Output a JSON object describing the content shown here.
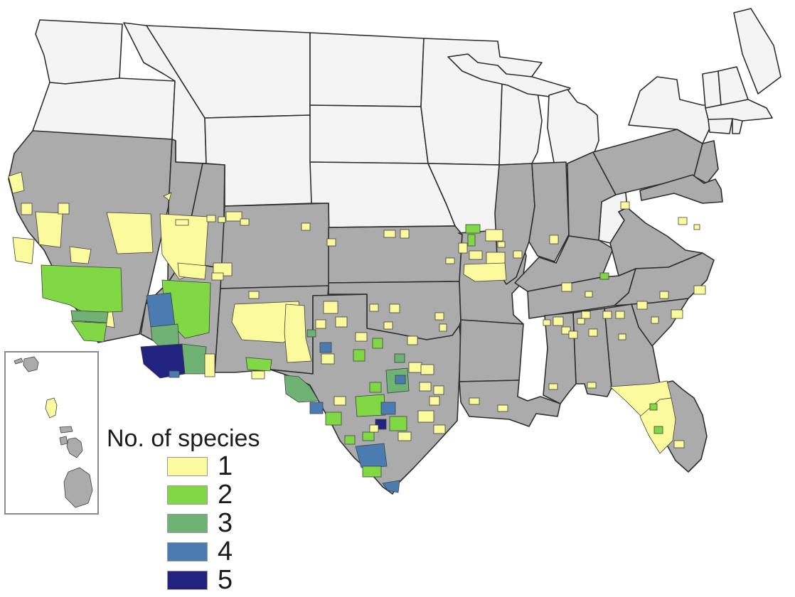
{
  "figure": {
    "type": "choropleth-map",
    "region": "United States (contiguous states with Hawaii inset)",
    "description": "County-level map of number of species; white states not surveyed, gray states surveyed with zero-count counties"
  },
  "legend": {
    "title": "No. of species",
    "entries": [
      {
        "label": "1",
        "color": "#FBFB9E"
      },
      {
        "label": "2",
        "color": "#80D944"
      },
      {
        "label": "3",
        "color": "#6EB274"
      },
      {
        "label": "4",
        "color": "#4A7CB2"
      },
      {
        "label": "5",
        "color": "#22227F"
      }
    ]
  },
  "map_data": {
    "palette": {
      "1": "#FBFB9E",
      "2": "#80D944",
      "3": "#6EB274",
      "4": "#4A7CB2",
      "5": "#22227F"
    },
    "no_data_fill": "#F4F4F4",
    "surveyed_fill": "#ABABAB",
    "state_border_color": "#2E2E2E",
    "county_border_color": "#3F3F3F",
    "inset_border_color": "#8A8A8A",
    "states_no_data": [
      "WA",
      "OR",
      "ID",
      "MT",
      "WY",
      "ND",
      "SD",
      "NE",
      "MN",
      "IA",
      "WI",
      "MIUP",
      "MI",
      "WV",
      "NY",
      "VT",
      "NH",
      "ME",
      "MA",
      "CT",
      "RI"
    ],
    "states_surveyed": [
      "CA",
      "NV",
      "UT",
      "AZ",
      "CO",
      "NM",
      "KS",
      "OK",
      "TX",
      "MO",
      "AR",
      "LA",
      "IL",
      "IN",
      "OH",
      "KY",
      "TN",
      "VA",
      "NC",
      "SC",
      "GA",
      "AL",
      "MS",
      "FL",
      "PA",
      "NJ",
      "MD"
    ],
    "patches": [
      {
        "n": 1,
        "p": "12,248 30,242 34,268 18,272"
      },
      {
        "n": 1,
        "r": [
          30,
          286,
          15,
          16
        ]
      },
      {
        "n": 1,
        "p": "50,298 88,300 85,348 55,344"
      },
      {
        "n": 1,
        "p": "18,334 48,337 45,371 22,367"
      },
      {
        "n": 1,
        "r": [
          82,
          286,
          15,
          15
        ]
      },
      {
        "n": 1,
        "p": "98,347 128,351 124,371 100,369"
      },
      {
        "n": 1,
        "p": "136,427 157,431 161,461 141,457"
      },
      {
        "n": 1,
        "p": "150,299 212,301 215,355 165,357"
      },
      {
        "n": 2,
        "p": "58,373 170,377 172,438 120,441 98,429 60,419"
      },
      {
        "n": 3,
        "p": "100,437 152,439 150,454 102,451"
      },
      {
        "n": 2,
        "p": "100,452 150,455 146,481 118,479"
      },
      {
        "n": 1,
        "p": "225,301 293,305 288,380 252,393 228,358"
      },
      {
        "n": 1,
        "p": "230,276 241,271 238,282"
      },
      {
        "n": 1,
        "r": [
          247,
          309,
          18,
          8
        ]
      },
      {
        "n": 1,
        "r": [
          291,
          303,
          12,
          9
        ]
      },
      {
        "n": 1,
        "r": [
          307,
          305,
          10,
          8
        ]
      },
      {
        "n": 1,
        "r": [
          318,
          298,
          22,
          13
        ]
      },
      {
        "n": 1,
        "r": [
          300,
          370,
          26,
          18
        ]
      },
      {
        "n": 1,
        "r": [
          338,
          308,
          12,
          9
        ]
      },
      {
        "n": 1,
        "r": [
          424,
          314,
          12,
          10
        ]
      },
      {
        "n": 1,
        "p": "250,370 290,374 288,393 252,389"
      },
      {
        "n": 1,
        "r": [
          298,
          384,
          16,
          10
        ]
      },
      {
        "n": 2,
        "p": "228,394 296,398 294,468 260,476 232,446"
      },
      {
        "n": 4,
        "p": "206,416 240,412 246,458 212,460"
      },
      {
        "n": 3,
        "p": "212,460 250,456 252,490 230,494 214,478"
      },
      {
        "n": 5,
        "p": "198,488 256,484 260,526 225,532 202,512"
      },
      {
        "n": 4,
        "r": [
          238,
          522,
          14,
          9
        ]
      },
      {
        "n": 3,
        "p": "256,484 290,488 288,526 260,526"
      },
      {
        "n": 1,
        "r": [
          288,
          498,
          14,
          32
        ]
      },
      {
        "n": 1,
        "p": "330,428 420,424 424,468 398,482 340,478 326,453"
      },
      {
        "n": 1,
        "r": [
          444,
          450,
          14,
          12
        ]
      },
      {
        "n": 1,
        "r": [
          350,
          410,
          14,
          10
        ]
      },
      {
        "n": 2,
        "p": "346,503 382,506 380,522 348,520"
      },
      {
        "n": 1,
        "r": [
          354,
          522,
          18,
          11
        ]
      },
      {
        "n": 3,
        "r": [
          412,
          484,
          16,
          12
        ]
      },
      {
        "n": 3,
        "r": [
          432,
          464,
          12,
          10
        ]
      },
      {
        "n": 1,
        "p": "402,428 428,430 430,476 438,508 404,510 400,468"
      },
      {
        "n": 1,
        "r": [
          455,
          424,
          20,
          17
        ]
      },
      {
        "n": 1,
        "r": [
          472,
          446,
          16,
          14
        ]
      },
      {
        "n": 1,
        "r": [
          500,
          468,
          16,
          12
        ]
      },
      {
        "n": 1,
        "r": [
          452,
          498,
          18,
          14
        ]
      },
      {
        "n": 4,
        "r": [
          450,
          482,
          16,
          14
        ]
      },
      {
        "n": 2,
        "r": [
          497,
          492,
          16,
          16
        ]
      },
      {
        "n": 2,
        "r": [
          524,
          476,
          14,
          14
        ]
      },
      {
        "n": 1,
        "r": [
          520,
          428,
          12,
          10
        ]
      },
      {
        "n": 1,
        "r": [
          540,
          453,
          12,
          10
        ]
      },
      {
        "n": 3,
        "p": "543,521 573,518 575,550 545,553"
      },
      {
        "n": 3,
        "r": [
          555,
          498,
          14,
          12
        ]
      },
      {
        "n": 2,
        "p": "500,558 540,555 542,584 502,586"
      },
      {
        "n": 2,
        "r": [
          548,
          586,
          24,
          20
        ]
      },
      {
        "n": 2,
        "r": [
          520,
          538,
          16,
          14
        ]
      },
      {
        "n": 4,
        "r": [
          536,
          566,
          20,
          17
        ]
      },
      {
        "n": 4,
        "r": [
          556,
          528,
          14,
          12
        ]
      },
      {
        "n": 5,
        "r": [
          528,
          590,
          15,
          14
        ]
      },
      {
        "n": 1,
        "r": [
          575,
          510,
          18,
          14
        ]
      },
      {
        "n": 1,
        "r": [
          590,
          538,
          16,
          12
        ]
      },
      {
        "n": 1,
        "r": [
          588,
          578,
          22,
          16
        ]
      },
      {
        "n": 1,
        "r": [
          604,
          558,
          14,
          12
        ]
      },
      {
        "n": 1,
        "r": [
          560,
          608,
          18,
          12
        ]
      },
      {
        "n": 1,
        "r": [
          610,
          598,
          16,
          12
        ]
      },
      {
        "n": 1,
        "r": [
          573,
          473,
          14,
          12
        ]
      },
      {
        "n": 2,
        "r": [
          510,
          608,
          16,
          12
        ]
      },
      {
        "n": 2,
        "r": [
          485,
          613,
          14,
          12
        ]
      },
      {
        "n": 4,
        "p": "500,628 540,624 544,656 508,658"
      },
      {
        "n": 2,
        "r": [
          510,
          656,
          26,
          15
        ]
      },
      {
        "n": 4,
        "p": "538,680 562,676 560,693 545,690"
      },
      {
        "n": 1,
        "r": [
          520,
          598,
          12,
          10
        ]
      },
      {
        "n": 3,
        "p": "400,528 420,530 436,544 448,564 420,566 402,554"
      },
      {
        "n": 4,
        "r": [
          436,
          566,
          18,
          16
        ]
      },
      {
        "n": 2,
        "r": [
          458,
          580,
          22,
          18
        ]
      },
      {
        "n": 1,
        "r": [
          470,
          558,
          16,
          12
        ]
      },
      {
        "n": 1,
        "r": [
          592,
          513,
          18,
          14
        ]
      },
      {
        "n": 1,
        "r": [
          610,
          543,
          14,
          12
        ]
      },
      {
        "n": 1,
        "r": [
          548,
          428,
          14,
          12
        ]
      },
      {
        "n": 1,
        "r": [
          612,
          440,
          12,
          10
        ]
      },
      {
        "n": 1,
        "r": [
          618,
          456,
          10,
          10
        ]
      },
      {
        "n": 1,
        "r": [
          460,
          336,
          12,
          10
        ]
      },
      {
        "n": 1,
        "r": [
          540,
          324,
          16,
          10
        ]
      },
      {
        "n": 1,
        "r": [
          563,
          323,
          12,
          12
        ]
      },
      {
        "n": 2,
        "r": [
          655,
          316,
          20,
          12
        ]
      },
      {
        "n": 2,
        "r": [
          658,
          330,
          10,
          16
        ]
      },
      {
        "n": 1,
        "r": [
          683,
          323,
          24,
          16
        ]
      },
      {
        "n": 1,
        "r": [
          645,
          342,
          12,
          14
        ]
      },
      {
        "n": 1,
        "r": [
          660,
          353,
          18,
          12
        ]
      },
      {
        "n": 1,
        "r": [
          684,
          355,
          26,
          16
        ]
      },
      {
        "n": 1,
        "r": [
          627,
          363,
          12,
          8
        ]
      },
      {
        "n": 1,
        "p": "653,372 710,370 712,394 668,396 652,386"
      },
      {
        "n": 1,
        "r": [
          700,
          340,
          10,
          8
        ]
      },
      {
        "n": 1,
        "r": [
          722,
          353,
          12,
          10
        ]
      },
      {
        "n": 1,
        "r": [
          773,
          331,
          12,
          12
        ]
      },
      {
        "n": 1,
        "r": [
          873,
          284,
          12,
          10
        ]
      },
      {
        "n": 2,
        "r": [
          844,
          384,
          12,
          9
        ]
      },
      {
        "n": 1,
        "r": [
          790,
          398,
          14,
          12
        ]
      },
      {
        "n": 1,
        "r": [
          823,
          410,
          10,
          8
        ]
      },
      {
        "n": 1,
        "r": [
          954,
          306,
          12,
          10
        ]
      },
      {
        "n": 1,
        "r": [
          976,
          316,
          8,
          7
        ]
      },
      {
        "n": 1,
        "r": [
          976,
          402,
          16,
          12
        ]
      },
      {
        "n": 1,
        "r": [
          928,
          410,
          12,
          10
        ]
      },
      {
        "n": 1,
        "r": [
          944,
          436,
          16,
          12
        ]
      },
      {
        "n": 1,
        "r": [
          916,
          446,
          10,
          9
        ]
      },
      {
        "n": 1,
        "r": [
          818,
          438,
          12,
          10
        ]
      },
      {
        "n": 1,
        "r": [
          828,
          463,
          12,
          10
        ]
      },
      {
        "n": 1,
        "r": [
          848,
          438,
          12,
          10
        ]
      },
      {
        "n": 1,
        "r": [
          866,
          438,
          12,
          10
        ]
      },
      {
        "n": 1,
        "r": [
          896,
          424,
          14,
          11
        ]
      },
      {
        "n": 1,
        "r": [
          870,
          470,
          10,
          8
        ]
      },
      {
        "n": 1,
        "r": [
          778,
          446,
          14,
          12
        ]
      },
      {
        "n": 1,
        "r": [
          790,
          460,
          12,
          10
        ]
      },
      {
        "n": 1,
        "r": [
          800,
          466,
          12,
          10
        ]
      },
      {
        "n": 1,
        "r": [
          812,
          448,
          10,
          8
        ]
      },
      {
        "n": 1,
        "r": [
          826,
          538,
          12,
          8
        ]
      },
      {
        "n": 1,
        "r": [
          764,
          450,
          10,
          8
        ]
      },
      {
        "n": 1,
        "r": [
          772,
          540,
          12,
          8
        ]
      },
      {
        "n": 1,
        "r": [
          660,
          560,
          14,
          9
        ]
      },
      {
        "n": 1,
        "r": [
          700,
          570,
          14,
          9
        ]
      },
      {
        "n": 1,
        "p": "858,544 916,540 938,536 944,560 928,562 902,586 880,564"
      },
      {
        "n": 1,
        "p": "900,586 928,562 944,560 950,590 946,620 928,638 912,612"
      },
      {
        "n": 2,
        "r": [
          914,
          568,
          10,
          9
        ]
      },
      {
        "n": 2,
        "r": [
          920,
          600,
          12,
          10
        ]
      },
      {
        "n": 1,
        "r": [
          948,
          620,
          14,
          10
        ]
      }
    ],
    "hawaii_inset": {
      "frame": [
        7,
        495,
        131,
        228
      ],
      "islands": [
        {
          "name": "niihau",
          "fill": "zero",
          "p": "20,508 30,504 32,509 22,512"
        },
        {
          "name": "kauai",
          "fill": "zero",
          "p": "34,505 48,502 54,510 52,520 40,523 33,514"
        },
        {
          "name": "oahu",
          "fill": "1",
          "p": "66,563 76,560 80,570 78,584 70,588 64,575"
        },
        {
          "name": "molokai",
          "fill": "zero",
          "p": "84,601 100,600 102,607 86,609"
        },
        {
          "name": "lanai",
          "fill": "zero",
          "p": "84,616 93,614 95,624 86,626"
        },
        {
          "name": "maui",
          "fill": "zero",
          "p": "96,618 106,616 114,622 116,634 108,644 98,638 94,628"
        },
        {
          "name": "hawaii",
          "fill": "zero",
          "p": "96,664 112,658 126,668 130,690 124,708 106,714 92,700 90,678"
        }
      ]
    }
  }
}
